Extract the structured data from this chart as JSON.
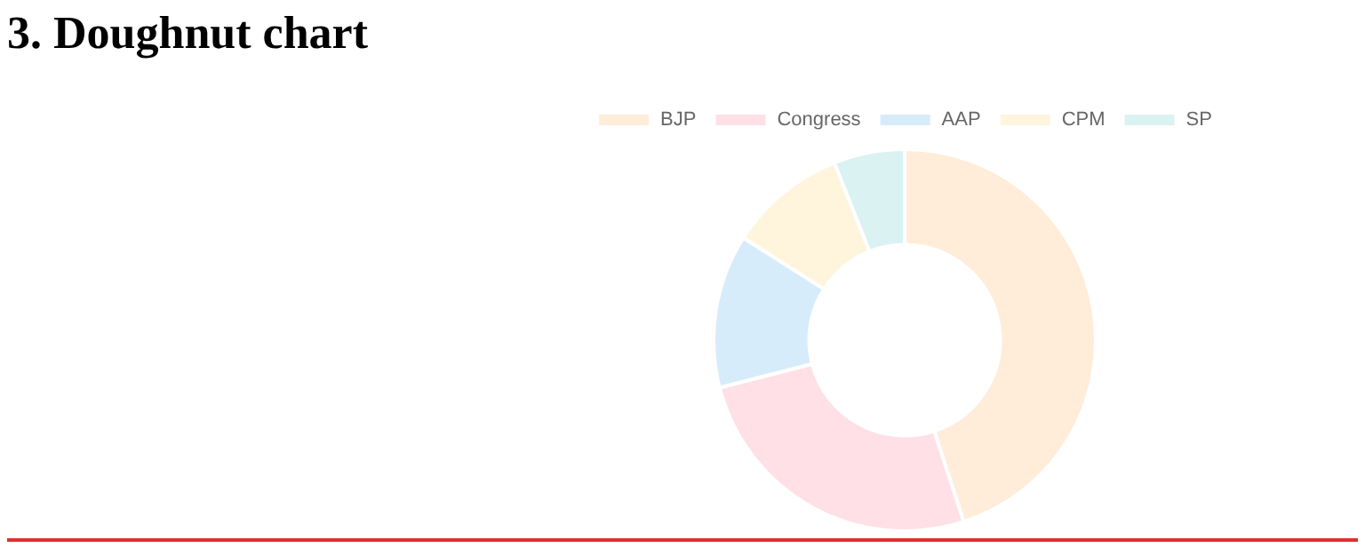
{
  "chart_data": {
    "type": "donut",
    "title": "3. Doughnut chart",
    "categories": [
      "BJP",
      "Congress",
      "AAP",
      "CPM",
      "SP"
    ],
    "values": [
      45,
      26,
      13,
      10,
      6
    ],
    "colors": [
      "#ffecd9",
      "#ffe0e6",
      "#d7ecfb",
      "#fff5dd",
      "#dbf2f2"
    ],
    "legend": "top"
  }
}
